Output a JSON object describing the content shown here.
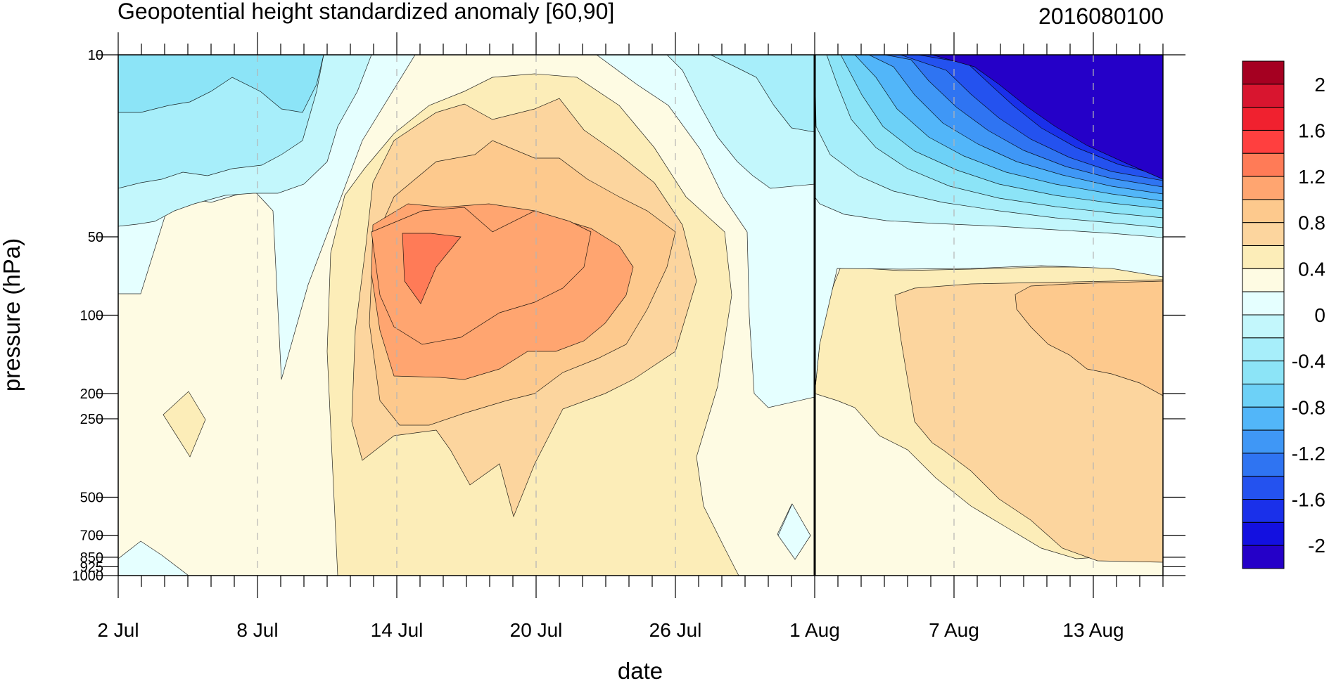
{
  "chart_data": {
    "type": "heatmap",
    "subtype": "filled-contour (time-pressure cross section)",
    "title": "Geopotential height standardized anomaly [60,90]",
    "date_label": "2016080100",
    "xlabel": "date",
    "ylabel": "pressure (hPa)",
    "x_range": [
      "2016-07-02",
      "2016-08-16"
    ],
    "analysis_date": "2016-08-01",
    "x_major_ticks": [
      {
        "date": "2016-07-02",
        "label": "2 Jul"
      },
      {
        "date": "2016-07-08",
        "label": "8 Jul"
      },
      {
        "date": "2016-07-14",
        "label": "14 Jul"
      },
      {
        "date": "2016-07-20",
        "label": "20 Jul"
      },
      {
        "date": "2016-07-26",
        "label": "26 Jul"
      },
      {
        "date": "2016-08-01",
        "label": "1 Aug"
      },
      {
        "date": "2016-08-07",
        "label": "7 Aug"
      },
      {
        "date": "2016-08-13",
        "label": "13 Aug"
      }
    ],
    "y_scale": "log",
    "y_range": [
      1000,
      10
    ],
    "y_ticks": [
      {
        "value": 10,
        "label": "10"
      },
      {
        "value": 50,
        "label": "50"
      },
      {
        "value": 100,
        "label": "100"
      },
      {
        "value": 200,
        "label": "200"
      },
      {
        "value": 250,
        "label": "250"
      },
      {
        "value": 500,
        "label": "500"
      },
      {
        "value": 700,
        "label": "700"
      },
      {
        "value": 850,
        "label": "850"
      },
      {
        "value": 925,
        "label": "925"
      },
      {
        "value": 1000,
        "label": "1000"
      }
    ],
    "contour_levels": [
      -2.2,
      -2,
      -1.8,
      -1.6,
      -1.4,
      -1.2,
      -1,
      -0.8,
      -0.6,
      -0.4,
      -0.2,
      0,
      0.2,
      0.4,
      0.6,
      0.8,
      1,
      1.2,
      1.4,
      1.6,
      1.8,
      2,
      2.2
    ],
    "colorbar": {
      "labels": [
        "2",
        "1.6",
        "1.2",
        "0.8",
        "0.4",
        "0",
        "-0.4",
        "-0.8",
        "-1.2",
        "-1.6",
        "-2"
      ],
      "colors": [
        "#a50021",
        "#d8152f",
        "#f0212f",
        "#ff3f3f",
        "#ff7b57",
        "#ffa570",
        "#fdc98d",
        "#fcd59e",
        "#fcedb8",
        "#fefbe3",
        "#e5ffff",
        "#c3f7fc",
        "#a7eefa",
        "#8ce4f7",
        "#6dd1f7",
        "#52b6f9",
        "#3f97f6",
        "#2f74f2",
        "#2452ef",
        "#1a30ea",
        "#1310e0",
        "#2500c8"
      ]
    },
    "features": [
      {
        "name": "warm anomaly core",
        "date": "2016-07-15",
        "pressure_hPa": 60,
        "value": 1.2
      },
      {
        "name": "cold stratospheric anomaly",
        "date_range": [
          "2016-08-07",
          "2016-08-16"
        ],
        "pressure_hPa_range": [
          10,
          40
        ],
        "value": -2.2
      },
      {
        "name": "lower stratosphere warm anomaly",
        "date": "2016-08-13",
        "pressure_hPa": 130,
        "value": 0.8
      }
    ]
  },
  "colors": {
    "frame": "#000000",
    "grid_dash": "#b4b4b4"
  }
}
